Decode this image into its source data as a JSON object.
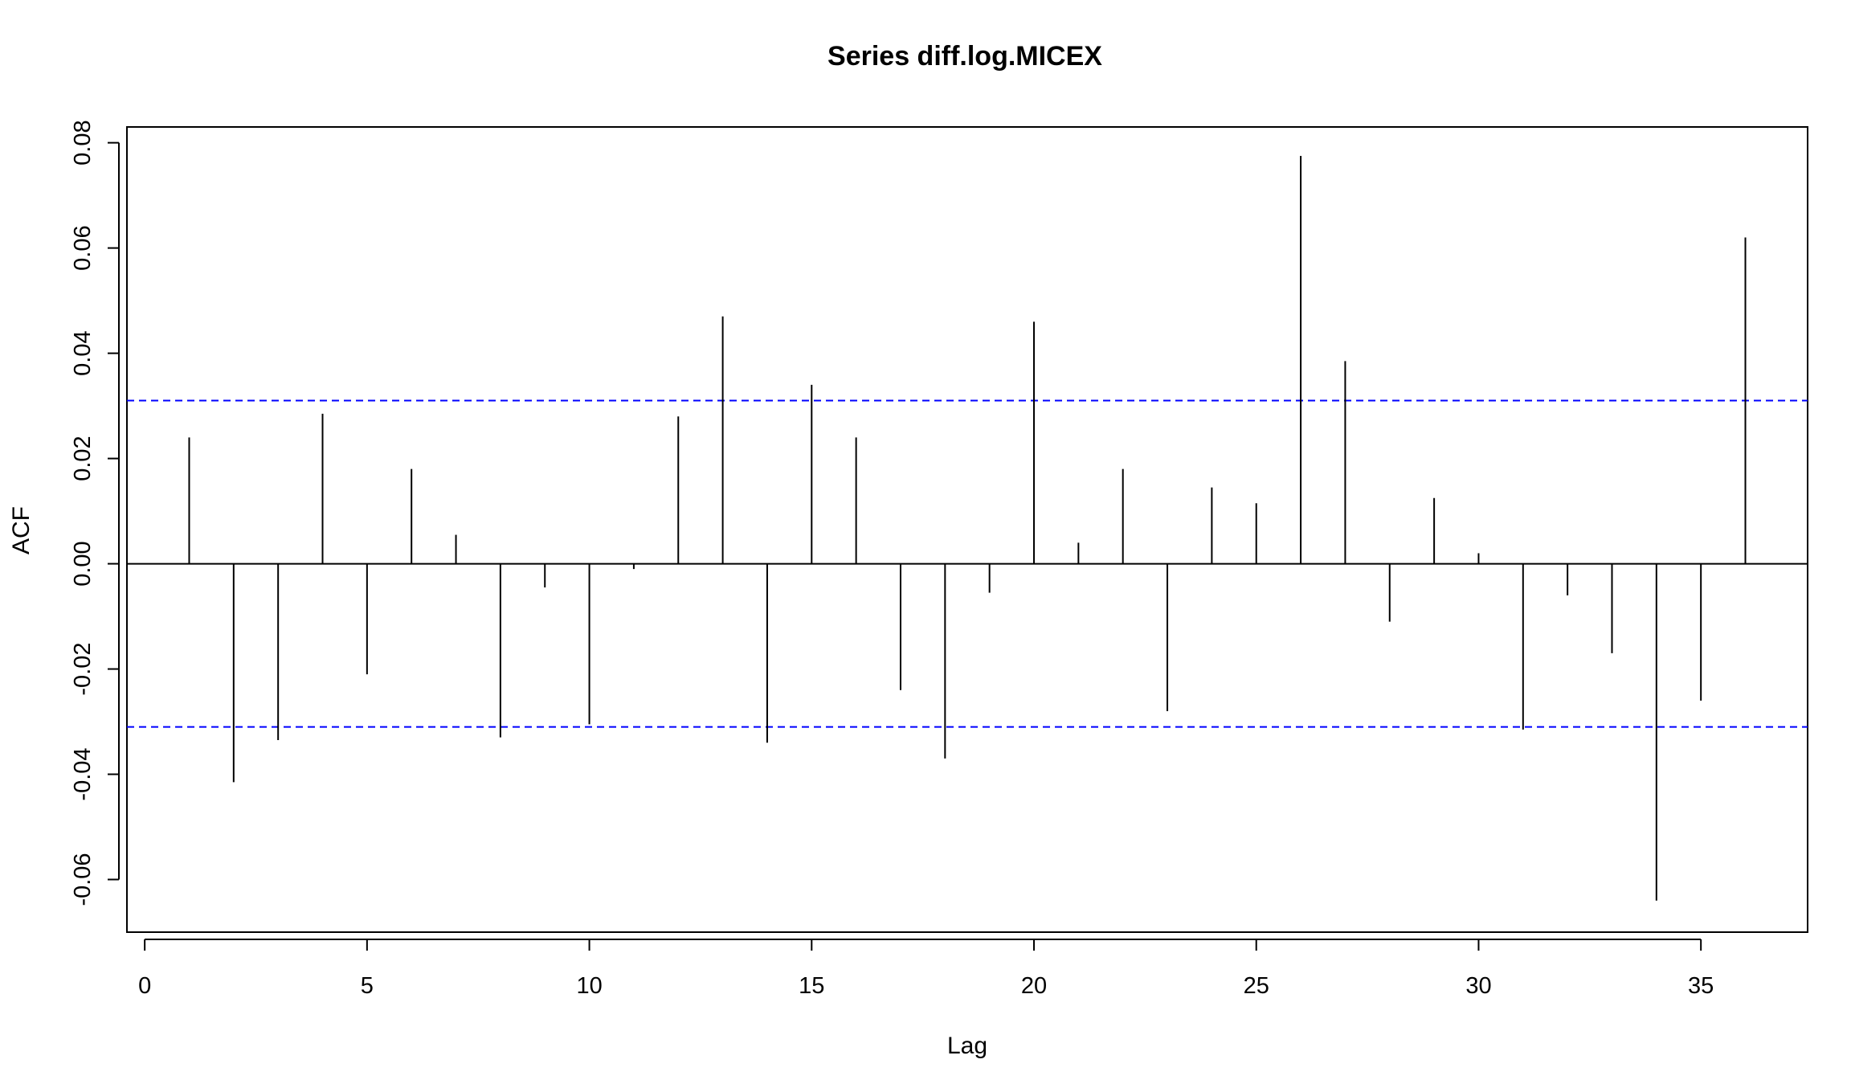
{
  "chart_data": {
    "type": "bar",
    "title": "Series  diff.log.MICEX",
    "xlabel": "Lag",
    "ylabel": "ACF",
    "xlim": [
      -0.4,
      37.4
    ],
    "ylim": [
      -0.07,
      0.083
    ],
    "x_ticks": [
      0,
      5,
      10,
      15,
      20,
      25,
      30,
      35
    ],
    "y_ticks": [
      -0.06,
      -0.04,
      -0.02,
      0.0,
      0.02,
      0.04,
      0.06,
      0.08
    ],
    "x_tick_labels": [
      "0",
      "5",
      "10",
      "15",
      "20",
      "25",
      "30",
      "35"
    ],
    "y_tick_labels": [
      "-0.06",
      "-0.04",
      "-0.02",
      "0.00",
      "0.02",
      "0.04",
      "0.06",
      "0.08"
    ],
    "confidence_bound": 0.031,
    "confidence_color": "#0000ff",
    "spike_color": "#000000",
    "grid": false,
    "lags": [
      1,
      2,
      3,
      4,
      5,
      6,
      7,
      8,
      9,
      10,
      11,
      12,
      13,
      14,
      15,
      16,
      17,
      18,
      19,
      20,
      21,
      22,
      23,
      24,
      25,
      26,
      27,
      28,
      29,
      30,
      31,
      32,
      33,
      34,
      35,
      36
    ],
    "values": [
      0.024,
      -0.0415,
      -0.0335,
      0.0285,
      -0.021,
      0.018,
      0.0055,
      -0.033,
      -0.0045,
      -0.0305,
      -0.001,
      0.028,
      0.047,
      -0.034,
      0.034,
      0.024,
      -0.024,
      -0.037,
      -0.0055,
      0.046,
      0.004,
      0.018,
      -0.028,
      0.0145,
      0.0115,
      0.0775,
      0.0385,
      -0.011,
      0.0125,
      0.002,
      -0.0315,
      -0.006,
      -0.017,
      -0.064,
      -0.026,
      0.062
    ]
  }
}
